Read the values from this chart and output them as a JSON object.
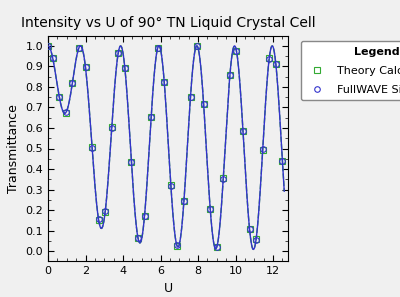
{
  "title": "Intensity vs U of 90° TN Liquid Crystal Cell",
  "xlabel": "U",
  "ylabel": "Transmittance",
  "xlim": [
    0,
    12.8
  ],
  "ylim": [
    -0.05,
    1.05
  ],
  "xticks": [
    0,
    2,
    4,
    6,
    8,
    10,
    12
  ],
  "yticks": [
    0.0,
    0.1,
    0.2,
    0.3,
    0.4,
    0.5,
    0.6,
    0.7,
    0.8,
    0.9,
    1.0
  ],
  "legend_title": "Legend:",
  "series": [
    {
      "label": "FullWAVE Simulation",
      "color": "#3333cc",
      "linestyle": "-",
      "marker": "o",
      "markersize": 4,
      "linewidth": 1.0
    },
    {
      "label": "Theory Calculation",
      "color": "#33aa33",
      "linestyle": "--",
      "marker": "s",
      "markersize": 4,
      "linewidth": 1.0
    }
  ],
  "bg_color": "#f0f0f0",
  "title_fontsize": 10,
  "axis_label_fontsize": 9,
  "tick_fontsize": 8,
  "legend_fontsize": 8,
  "legend_title_fontsize": 8
}
